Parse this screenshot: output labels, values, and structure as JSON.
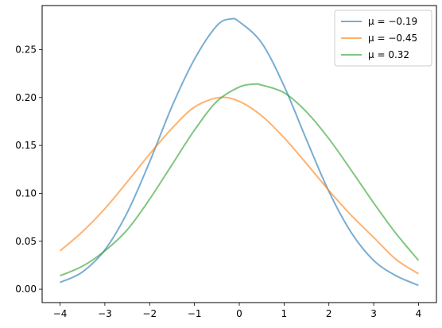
{
  "chart_data": {
    "type": "line",
    "title": "",
    "xlabel": "",
    "ylabel": "",
    "xlim": [
      -4.4,
      4.4
    ],
    "ylim": [
      -0.014,
      0.296
    ],
    "grid": false,
    "legend_position": "top-right",
    "x_ticks": [
      -4,
      -3,
      -2,
      -1,
      0,
      1,
      2,
      3,
      4
    ],
    "x_tick_labels": [
      "−4",
      "−3",
      "−2",
      "−1",
      "0",
      "1",
      "2",
      "3",
      "4"
    ],
    "y_ticks": [
      0.0,
      0.05,
      0.1,
      0.15,
      0.2,
      0.25
    ],
    "y_tick_labels": [
      "0.00",
      "0.05",
      "0.10",
      "0.15",
      "0.20",
      "0.25"
    ],
    "series": [
      {
        "name": "μ = −0.19",
        "color": "#1f77b4",
        "x": [
          -4,
          -3.5,
          -3,
          -2.5,
          -2,
          -1.5,
          -1,
          -0.5,
          -0.19,
          0,
          0.5,
          1,
          1.5,
          2,
          2.5,
          3,
          3.5,
          4
        ],
        "y": [
          0.007,
          0.018,
          0.041,
          0.08,
          0.133,
          0.191,
          0.24,
          0.275,
          0.282,
          0.279,
          0.257,
          0.212,
          0.156,
          0.102,
          0.059,
          0.03,
          0.014,
          0.004
        ]
      },
      {
        "name": "μ = −0.45",
        "color": "#ff7f0e",
        "x": [
          -4,
          -3.5,
          -3,
          -2.5,
          -2,
          -1.5,
          -1,
          -0.45,
          0,
          0.5,
          1,
          1.5,
          2,
          2.5,
          3,
          3.5,
          4
        ],
        "y": [
          0.04,
          0.06,
          0.084,
          0.112,
          0.141,
          0.168,
          0.19,
          0.2,
          0.196,
          0.181,
          0.158,
          0.131,
          0.103,
          0.077,
          0.054,
          0.031,
          0.016
        ]
      },
      {
        "name": "μ = 0.32",
        "color": "#2ca02c",
        "x": [
          -4,
          -3.5,
          -3,
          -2.5,
          -2,
          -1.5,
          -1,
          -0.5,
          0,
          0.32,
          0.5,
          1,
          1.5,
          2,
          2.5,
          3,
          3.5,
          4
        ],
        "y": [
          0.014,
          0.024,
          0.04,
          0.062,
          0.094,
          0.13,
          0.166,
          0.196,
          0.211,
          0.214,
          0.213,
          0.205,
          0.185,
          0.157,
          0.124,
          0.09,
          0.058,
          0.03
        ]
      }
    ]
  }
}
